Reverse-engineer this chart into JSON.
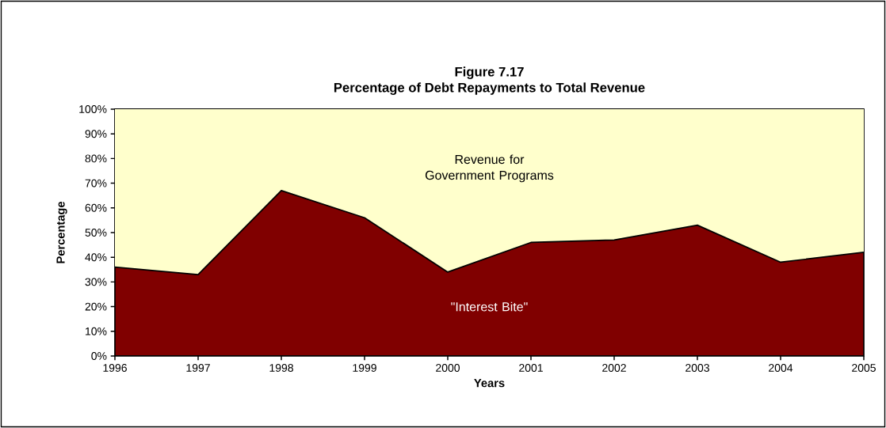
{
  "chart_data": {
    "type": "area",
    "title": "Figure 7.17",
    "subtitle": "Percentage of Debt Repayments to Total Revenue",
    "xlabel": "Years",
    "ylabel": "Percentage",
    "x": [
      1996,
      1997,
      1998,
      1999,
      2000,
      2001,
      2002,
      2003,
      2004,
      2005
    ],
    "stacked": true,
    "series": [
      {
        "name": "\"Interest Bite\"",
        "color": "#800000",
        "values": [
          36,
          33,
          67,
          56,
          34,
          46,
          47,
          53,
          38,
          42
        ]
      },
      {
        "name": "Revenue for Government Programs",
        "color": "#ffffcc",
        "values": [
          64,
          67,
          33,
          44,
          66,
          54,
          53,
          47,
          62,
          58
        ]
      }
    ],
    "xlim": [
      1996,
      2005
    ],
    "xticks": [
      1996,
      1997,
      1998,
      1999,
      2000,
      2001,
      2002,
      2003,
      2004,
      2005
    ],
    "ylim": [
      0,
      100
    ],
    "yticks": [
      {
        "value": 0,
        "label": "0%"
      },
      {
        "value": 10,
        "label": "10%"
      },
      {
        "value": 20,
        "label": "20%"
      },
      {
        "value": 30,
        "label": "30%"
      },
      {
        "value": 40,
        "label": "40%"
      },
      {
        "value": 50,
        "label": "50%"
      },
      {
        "value": 60,
        "label": "60%"
      },
      {
        "value": 70,
        "label": "70%"
      },
      {
        "value": 80,
        "label": "80%"
      },
      {
        "value": 90,
        "label": "90%"
      },
      {
        "value": 100,
        "label": "100%"
      }
    ],
    "relative": false
  }
}
